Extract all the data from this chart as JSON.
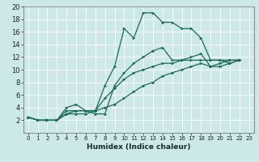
{
  "title": "",
  "xlabel": "Humidex (Indice chaleur)",
  "bg_color": "#cce8e8",
  "grid_color": "#ffffff",
  "line_color": "#1a6b5a",
  "xlim": [
    -0.5,
    23.5
  ],
  "ylim": [
    0,
    20
  ],
  "xticks": [
    0,
    1,
    2,
    3,
    4,
    5,
    6,
    7,
    8,
    9,
    10,
    11,
    12,
    13,
    14,
    15,
    16,
    17,
    18,
    19,
    20,
    21,
    22,
    23
  ],
  "yticks": [
    2,
    4,
    6,
    8,
    10,
    12,
    14,
    16,
    18,
    20
  ],
  "series": [
    {
      "x": [
        0,
        1,
        2,
        3,
        4,
        5,
        6,
        7,
        8,
        9,
        10,
        11,
        12,
        13,
        14,
        15,
        16,
        17,
        18,
        19,
        20,
        21,
        22
      ],
      "y": [
        2.5,
        2.0,
        2.0,
        2.0,
        4.0,
        4.5,
        3.5,
        3.5,
        7.5,
        10.5,
        16.5,
        15.0,
        19.0,
        19.0,
        17.5,
        17.5,
        16.5,
        16.5,
        15.0,
        11.5,
        11.5,
        11.0,
        11.5
      ]
    },
    {
      "x": [
        0,
        1,
        2,
        3,
        4,
        5,
        6,
        7,
        8,
        9,
        10,
        11,
        12,
        13,
        14,
        15,
        16,
        17,
        18,
        19,
        20,
        21,
        22
      ],
      "y": [
        2.5,
        2.0,
        2.0,
        2.0,
        3.5,
        3.5,
        3.5,
        3.0,
        3.0,
        7.5,
        9.5,
        11.0,
        12.0,
        13.0,
        13.5,
        11.5,
        11.5,
        11.5,
        11.5,
        11.5,
        11.5,
        11.5,
        11.5
      ]
    },
    {
      "x": [
        0,
        1,
        2,
        3,
        4,
        5,
        6,
        7,
        8,
        9,
        10,
        11,
        12,
        13,
        14,
        15,
        16,
        17,
        18,
        19,
        20,
        21,
        22
      ],
      "y": [
        2.5,
        2.0,
        2.0,
        2.0,
        3.0,
        3.5,
        3.5,
        3.5,
        5.5,
        7.0,
        8.5,
        9.5,
        10.0,
        10.5,
        11.0,
        11.0,
        11.5,
        12.0,
        12.5,
        10.5,
        10.5,
        11.0,
        11.5
      ]
    },
    {
      "x": [
        0,
        1,
        2,
        3,
        4,
        5,
        6,
        7,
        8,
        9,
        10,
        11,
        12,
        13,
        14,
        15,
        16,
        17,
        18,
        19,
        20,
        21,
        22
      ],
      "y": [
        2.5,
        2.0,
        2.0,
        2.0,
        3.0,
        3.0,
        3.0,
        3.5,
        4.0,
        4.5,
        5.5,
        6.5,
        7.5,
        8.0,
        9.0,
        9.5,
        10.0,
        10.5,
        11.0,
        10.5,
        11.0,
        11.5,
        11.5
      ]
    }
  ],
  "xlabel_fontsize": 6.5,
  "tick_fontsize_x": 5.0,
  "tick_fontsize_y": 6.0,
  "linewidth": 0.9,
  "markersize": 2.2
}
